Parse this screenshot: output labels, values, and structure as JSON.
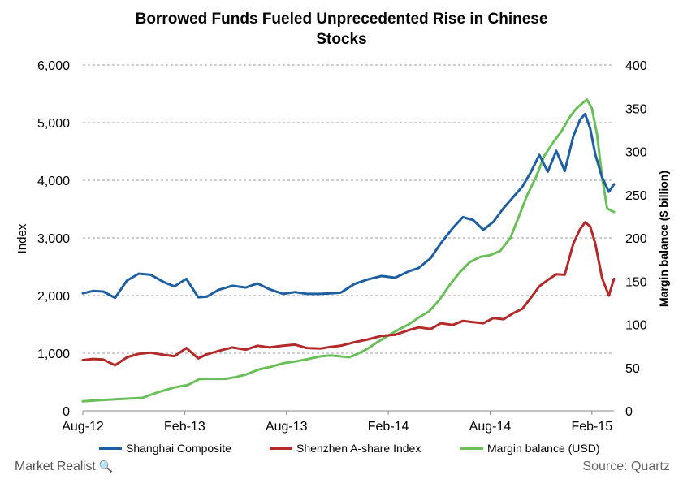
{
  "chart_data": {
    "type": "line",
    "title_line1": "Borrowed Funds Fueled Unprecedented Rise in Chinese",
    "title_line2": "Stocks",
    "ylabel": "Index",
    "y2label": "Margin balance ($ billion)",
    "ylim": [
      0,
      6000
    ],
    "y2lim": [
      0,
      400
    ],
    "yticks": [
      "0",
      "1,000",
      "2,000",
      "3,000",
      "4,000",
      "5,000",
      "6,000"
    ],
    "y2ticks": [
      "0",
      "50",
      "100",
      "150",
      "200",
      "250",
      "300",
      "350",
      "400"
    ],
    "xticks": [
      "Aug-12",
      "Feb-13",
      "Aug-13",
      "Feb-14",
      "Aug-14",
      "Feb-15"
    ],
    "grid": true,
    "legend_position": "bottom",
    "colors": {
      "shanghai": "#1f5fa0",
      "shenzhen": "#b22a2a",
      "margin": "#6abf5a",
      "grid": "#999999"
    },
    "series": [
      {
        "name": "Shanghai Composite",
        "axis": "left",
        "x": [
          0,
          0.6,
          1.2,
          1.9,
          2.6,
          3.3,
          4.0,
          4.8,
          5.4,
          6.1,
          6.8,
          7.3,
          8.0,
          8.8,
          9.6,
          10.3,
          11.0,
          11.8,
          12.5,
          13.2,
          14.0,
          14.6,
          15.2,
          16.0,
          16.8,
          17.6,
          18.4,
          19.2,
          19.8,
          20.5,
          21.1,
          21.8,
          22.4,
          23.0,
          23.6,
          24.2,
          24.8,
          25.4,
          25.9,
          26.4,
          26.9,
          27.4,
          27.9,
          28.4,
          28.9,
          29.3,
          29.6,
          29.9,
          30.2,
          30.6,
          31.0,
          31.3
        ],
        "y": [
          2040,
          2080,
          2070,
          1960,
          2260,
          2380,
          2360,
          2230,
          2160,
          2290,
          1970,
          1980,
          2100,
          2170,
          2140,
          2210,
          2110,
          2030,
          2060,
          2030,
          2030,
          2040,
          2050,
          2200,
          2280,
          2340,
          2310,
          2420,
          2480,
          2650,
          2910,
          3170,
          3360,
          3310,
          3140,
          3280,
          3520,
          3720,
          3890,
          4140,
          4440,
          4150,
          4510,
          4160,
          4760,
          5050,
          5150,
          4900,
          4450,
          4050,
          3800,
          3930
        ]
      },
      {
        "name": "Shenzhen A-share Index",
        "axis": "left",
        "x": [
          0,
          0.6,
          1.2,
          1.9,
          2.6,
          3.3,
          4.0,
          4.8,
          5.4,
          6.1,
          6.8,
          7.3,
          8.0,
          8.8,
          9.6,
          10.3,
          11.0,
          11.8,
          12.5,
          13.2,
          14.0,
          14.6,
          15.2,
          16.0,
          16.8,
          17.6,
          18.4,
          19.2,
          19.8,
          20.5,
          21.1,
          21.8,
          22.4,
          23.0,
          23.6,
          24.2,
          24.8,
          25.4,
          25.9,
          26.4,
          26.9,
          27.4,
          27.9,
          28.4,
          28.9,
          29.3,
          29.6,
          29.9,
          30.2,
          30.6,
          31.0,
          31.3
        ],
        "y": [
          880,
          900,
          890,
          790,
          930,
          990,
          1010,
          970,
          950,
          1090,
          910,
          980,
          1040,
          1100,
          1060,
          1130,
          1100,
          1130,
          1150,
          1090,
          1080,
          1110,
          1130,
          1190,
          1240,
          1300,
          1320,
          1400,
          1450,
          1420,
          1520,
          1490,
          1560,
          1540,
          1520,
          1610,
          1590,
          1700,
          1770,
          1960,
          2160,
          2270,
          2370,
          2360,
          2900,
          3150,
          3270,
          3200,
          2900,
          2300,
          2000,
          2290
        ]
      },
      {
        "name": "Margin balance (USD)",
        "axis": "right",
        "x": [
          0,
          1.5,
          2.5,
          3.5,
          4.5,
          5.4,
          6.2,
          6.9,
          7.6,
          8.4,
          9.0,
          9.6,
          10.4,
          11.1,
          11.8,
          12.5,
          13.3,
          14.0,
          14.6,
          15.2,
          15.7,
          16.2,
          16.8,
          17.4,
          18.0,
          18.6,
          19.2,
          19.8,
          20.4,
          21.0,
          21.6,
          22.2,
          22.8,
          23.4,
          24.0,
          24.6,
          25.2,
          25.7,
          26.2,
          26.7,
          27.2,
          27.7,
          28.2,
          28.7,
          29.1,
          29.4,
          29.7,
          30.0,
          30.3,
          30.6,
          30.9,
          31.3
        ],
        "y": [
          11,
          13,
          14,
          15,
          22,
          27,
          30,
          37,
          37,
          37,
          39,
          42,
          48,
          51,
          55,
          57,
          60,
          63,
          64,
          63,
          62,
          66,
          72,
          80,
          87,
          94,
          100,
          108,
          115,
          128,
          145,
          160,
          172,
          178,
          180,
          185,
          200,
          225,
          250,
          270,
          295,
          310,
          323,
          340,
          350,
          355,
          360,
          350,
          320,
          270,
          234,
          230
        ]
      }
    ]
  },
  "footer": {
    "brand": "Market Realist",
    "brand_icon": "magnifier-icon",
    "source": "Source: Quartz"
  }
}
